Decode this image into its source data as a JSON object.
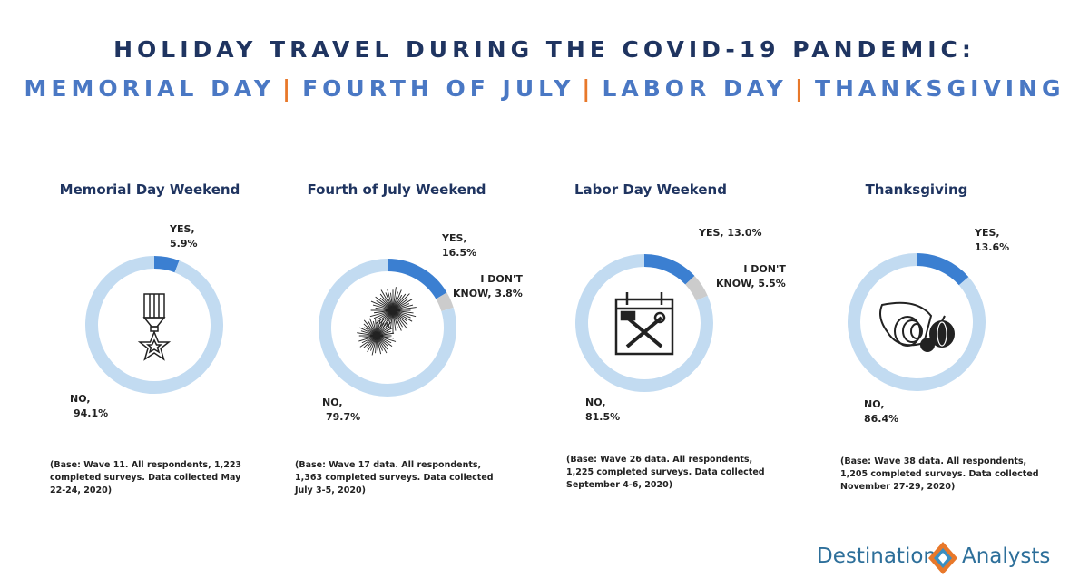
{
  "header": {
    "title": "HOLIDAY TRAVEL DURING THE COVID-19 PANDEMIC:",
    "subtitle_parts": [
      "MEMORIAL DAY",
      "FOURTH OF JULY",
      "LABOR DAY",
      "THANKSGIVING"
    ],
    "separator": "|"
  },
  "colors": {
    "yes": "#3b7fd1",
    "no": "#c2dbf1",
    "dont_know": "#cccccc",
    "title_dark": "#1f3460",
    "title_blue": "#4a78c4",
    "separator": "#e8782a"
  },
  "chart_data": [
    {
      "type": "pie",
      "title": "Memorial Day Weekend",
      "icon": "medal-icon",
      "slices": [
        {
          "label": "YES",
          "value": 5.9,
          "text": "YES, 5.9%"
        },
        {
          "label": "NO",
          "value": 94.1,
          "text": "NO, 94.1%"
        }
      ],
      "labels": {
        "yes": [
          "YES,",
          "5.9%"
        ],
        "no": [
          "NO,",
          "94.1%"
        ]
      },
      "base_note": "(Base: Wave 11. All respondents, 1,223 completed surveys. Data collected May 22-24, 2020)"
    },
    {
      "type": "pie",
      "title": "Fourth of July Weekend",
      "icon": "fireworks-icon",
      "slices": [
        {
          "label": "YES",
          "value": 16.5,
          "text": "YES, 16.5%"
        },
        {
          "label": "I DON'T KNOW",
          "value": 3.8,
          "text": "I DON'T KNOW, 3.8%"
        },
        {
          "label": "NO",
          "value": 79.7,
          "text": "NO, 79.7%"
        }
      ],
      "labels": {
        "yes": [
          "YES,",
          "16.5%"
        ],
        "dk": [
          "I DON'T",
          "KNOW, 3.8%"
        ],
        "no": [
          "NO,",
          "79.7%"
        ]
      },
      "base_note": "(Base: Wave 17 data. All respondents, 1,363 completed surveys. Data collected July 3-5, 2020)"
    },
    {
      "type": "pie",
      "title": "Labor Day Weekend",
      "icon": "calendar-tools-icon",
      "slices": [
        {
          "label": "YES",
          "value": 13.0,
          "text": "YES, 13.0%"
        },
        {
          "label": "I DON'T KNOW",
          "value": 5.5,
          "text": "I DON'T KNOW, 5.5%"
        },
        {
          "label": "NO",
          "value": 81.5,
          "text": "NO, 81.5%"
        }
      ],
      "labels": {
        "yes": [
          "YES, 13.0%"
        ],
        "dk": [
          "I DON'T",
          "KNOW, 5.5%"
        ],
        "no": [
          "NO,",
          "81.5%"
        ]
      },
      "base_note": "(Base: Wave 26 data. All respondents, 1,225 completed surveys. Data collected September 4-6, 2020)"
    },
    {
      "type": "pie",
      "title": "Thanksgiving",
      "icon": "cornucopia-icon",
      "slices": [
        {
          "label": "YES",
          "value": 13.6,
          "text": "YES, 13.6%"
        },
        {
          "label": "NO",
          "value": 86.4,
          "text": "NO, 86.4%"
        }
      ],
      "labels": {
        "yes": [
          "YES,",
          "13.6%"
        ],
        "no": [
          "NO,",
          "86.4%"
        ]
      },
      "base_note": "(Base: Wave 38 data. All respondents, 1,205 completed surveys. Data collected November 27-29, 2020)"
    }
  ],
  "footer": {
    "logo_left": "Destination",
    "logo_right": "Analysts"
  }
}
